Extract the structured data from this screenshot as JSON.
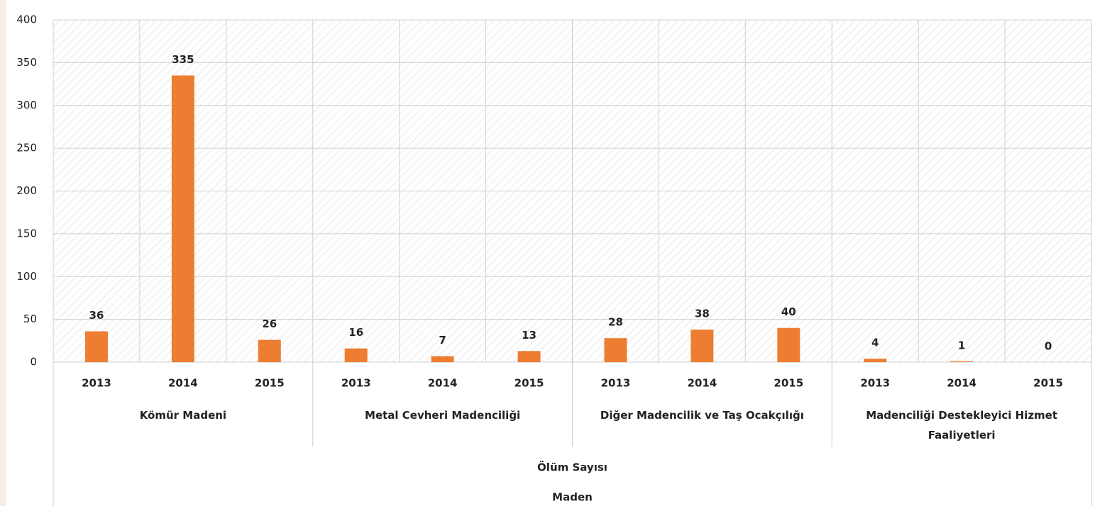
{
  "chart_data": {
    "type": "bar",
    "groups": [
      {
        "name": "Kömür Madeni",
        "categories": [
          "2013",
          "2014",
          "2015"
        ],
        "values": [
          36,
          335,
          26
        ]
      },
      {
        "name": "Metal Cevheri Madenciliği",
        "categories": [
          "2013",
          "2014",
          "2015"
        ],
        "values": [
          16,
          7,
          13
        ]
      },
      {
        "name": "Diğer Madencilik ve Taş Ocakçılığı",
        "categories": [
          "2013",
          "2014",
          "2015"
        ],
        "values": [
          28,
          38,
          40
        ]
      },
      {
        "name": "Madenciliği Destekleyici Hizmet Faaliyetleri",
        "categories": [
          "2013",
          "2014",
          "2015"
        ],
        "values": [
          4,
          1,
          0
        ]
      }
    ],
    "outer_category": "Ölüm Sayısı",
    "xlabel": "Maden",
    "color": "#ed7d31",
    "ylim": [
      0,
      400
    ],
    "yticks": [
      0,
      50,
      100,
      150,
      200,
      250,
      300,
      350,
      400
    ],
    "grid": true
  }
}
